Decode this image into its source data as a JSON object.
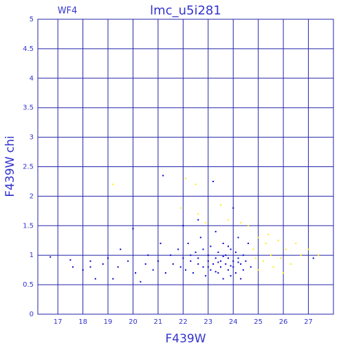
{
  "chart_data": {
    "type": "scatter",
    "title": "lmc_u5i281",
    "subtitle": "WF4",
    "x_label": "F439W",
    "y_label": "F439W chi",
    "xlim": [
      16.2,
      28.0
    ],
    "ylim": [
      0,
      5
    ],
    "xticks": [
      17,
      18,
      19,
      20,
      21,
      22,
      23,
      24,
      25,
      26,
      27
    ],
    "yticks": [
      0,
      0.5,
      1,
      1.5,
      2,
      2.5,
      3,
      3.5,
      4,
      4.5,
      5
    ],
    "grid": true,
    "series": [
      {
        "color": "#0000cc",
        "x": [
          16.7,
          17.5,
          17.6,
          18.0,
          18.3,
          18.3,
          18.5,
          18.8,
          19.0,
          19.2,
          19.4,
          19.5,
          19.8,
          20.0,
          20.1,
          20.3,
          20.5,
          20.6,
          20.8,
          21.0,
          21.1,
          21.2,
          21.3,
          21.5,
          21.6,
          21.8,
          21.9,
          22.0,
          22.0,
          22.1,
          22.2,
          22.3,
          22.4,
          22.5,
          22.6,
          22.7,
          22.8,
          22.9,
          23.0,
          23.0,
          23.1,
          23.1,
          23.2,
          23.2,
          23.3,
          23.3,
          23.4,
          23.4,
          23.5,
          23.5,
          23.6,
          23.6,
          23.7,
          23.7,
          23.8,
          23.8,
          23.9,
          23.9,
          24.0,
          24.0,
          24.1,
          24.1,
          24.2,
          24.2,
          24.3,
          24.3,
          24.4,
          24.4,
          24.5,
          24.6,
          24.7,
          22.3,
          22.6,
          23.0,
          23.4,
          23.6,
          23.9,
          24.2,
          22.8,
          23.3,
          23.8,
          24.0,
          22.6,
          27.2
        ],
        "y": [
          0.97,
          0.92,
          0.8,
          0.75,
          0.9,
          0.8,
          0.6,
          0.85,
          0.95,
          0.6,
          0.8,
          1.1,
          0.9,
          1.45,
          0.7,
          0.55,
          0.85,
          1.0,
          0.75,
          0.9,
          1.2,
          2.35,
          0.7,
          1.0,
          0.85,
          1.1,
          0.8,
          1.5,
          0.95,
          0.75,
          1.2,
          0.9,
          0.7,
          1.05,
          0.85,
          1.3,
          0.8,
          0.65,
          1.0,
          0.9,
          1.15,
          0.75,
          2.25,
          0.85,
          1.4,
          0.95,
          0.7,
          1.05,
          0.8,
          0.9,
          1.2,
          0.6,
          1.0,
          0.85,
          0.75,
          0.95,
          1.1,
          0.65,
          0.9,
          0.8,
          1.05,
          0.7,
          0.95,
          1.3,
          0.85,
          0.6,
          1.0,
          0.75,
          0.9,
          1.2,
          0.8,
          1.0,
          0.95,
          0.8,
          0.88,
          0.98,
          0.82,
          0.88,
          1.1,
          0.72,
          1.15,
          1.8,
          1.6,
          0.95
        ]
      },
      {
        "color": "#ffee00",
        "x": [
          19.2,
          22.1,
          22.5,
          21.9,
          22.6,
          23.5,
          22.9,
          24.6,
          24.8,
          25.0,
          25.2,
          25.3,
          25.5,
          25.6,
          25.8,
          25.9,
          26.1,
          26.3,
          26.5,
          26.7,
          27.0,
          27.4,
          25.0,
          24.9,
          25.4,
          26.0,
          23.8,
          24.3
        ],
        "y": [
          2.2,
          2.3,
          2.2,
          1.8,
          1.7,
          1.85,
          1.55,
          1.5,
          1.1,
          1.3,
          0.9,
          1.2,
          1.0,
          0.8,
          1.25,
          0.95,
          1.1,
          0.85,
          1.2,
          1.0,
          1.1,
          1.0,
          0.75,
          0.95,
          1.35,
          0.7,
          1.6,
          1.55
        ]
      }
    ]
  }
}
